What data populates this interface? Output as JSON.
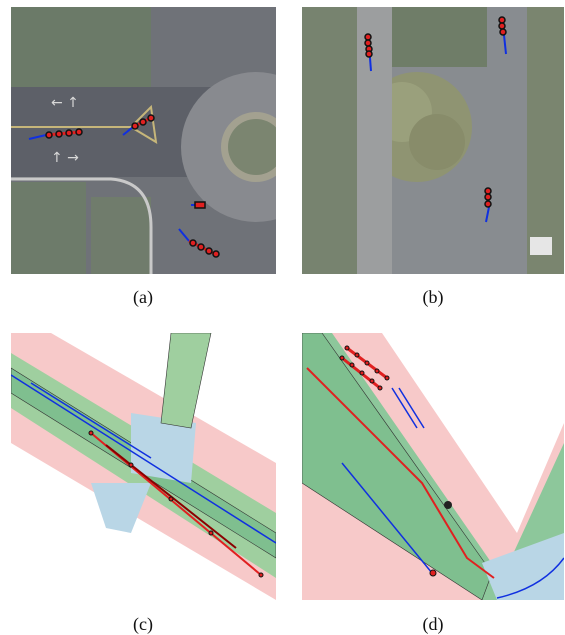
{
  "figure": {
    "panels": [
      {
        "id": "a",
        "caption": "(a)"
      },
      {
        "id": "b",
        "caption": "(b)"
      },
      {
        "id": "c",
        "caption": "(c)"
      },
      {
        "id": "d",
        "caption": "(d)"
      }
    ]
  },
  "colors": {
    "trajectory_points": "#e02020",
    "trajectory_outline": "#111111",
    "history_line": "#1030e0",
    "map_lane": "#7fbf8f",
    "map_sidewalk": "#f7c9c9",
    "map_crosswalk": "#b9d6e6"
  }
}
